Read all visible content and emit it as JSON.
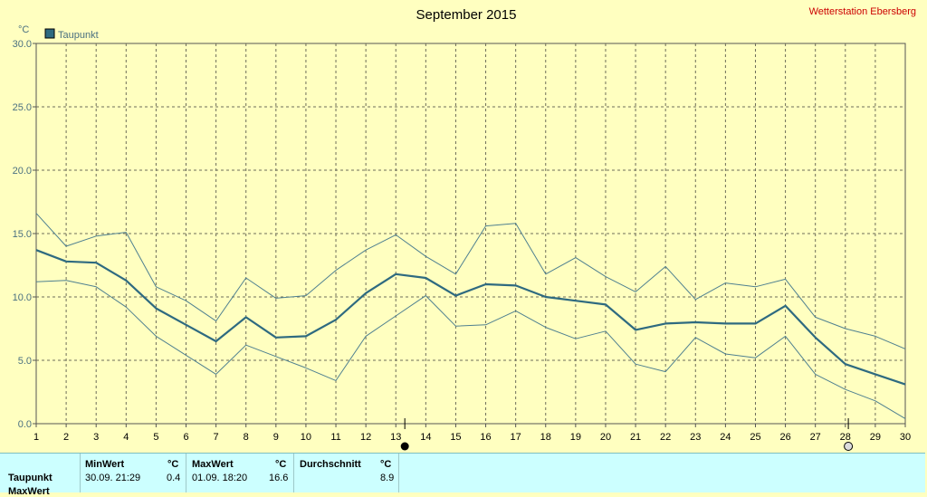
{
  "header": {
    "title": "September 2015",
    "station": "Wetterstation Ebersberg"
  },
  "colors": {
    "background": "#ffffc0",
    "series": "#2e6a80",
    "band": "#4f8090",
    "grid": "#8a8a6a",
    "axis_text": "#4a7080",
    "station": "#cc0000",
    "table_bg": "#ccffff"
  },
  "chart_data": {
    "type": "line",
    "title": "September 2015",
    "ylabel": "°C",
    "ylim": [
      0,
      30
    ],
    "yticks": [
      "0.0",
      "5.0",
      "10.0",
      "15.0",
      "20.0",
      "25.0",
      "30.0"
    ],
    "x": [
      1,
      2,
      3,
      4,
      5,
      6,
      7,
      8,
      9,
      10,
      11,
      12,
      13,
      14,
      15,
      16,
      17,
      18,
      19,
      20,
      21,
      22,
      23,
      24,
      25,
      26,
      27,
      28,
      29,
      30
    ],
    "grid": true,
    "legend_position": "top-left",
    "series": [
      {
        "name": "Taupunkt",
        "role": "mean",
        "values": [
          13.7,
          12.8,
          12.7,
          11.3,
          9.1,
          7.8,
          6.5,
          8.4,
          6.8,
          6.9,
          8.2,
          10.3,
          11.8,
          11.5,
          10.1,
          11.0,
          10.9,
          10.0,
          9.7,
          9.4,
          7.4,
          7.9,
          8.0,
          7.9,
          7.9,
          9.3,
          6.8,
          4.7,
          3.9,
          3.1
        ]
      },
      {
        "role": "max",
        "values": [
          16.6,
          14.0,
          14.8,
          15.1,
          10.8,
          9.7,
          8.1,
          11.5,
          9.9,
          10.1,
          12.1,
          13.7,
          14.9,
          13.2,
          11.8,
          15.6,
          15.8,
          11.8,
          13.1,
          11.6,
          10.4,
          12.4,
          9.8,
          11.1,
          10.8,
          11.4,
          8.4,
          7.5,
          6.9,
          5.9
        ]
      },
      {
        "role": "min",
        "values": [
          11.2,
          11.3,
          10.8,
          9.2,
          6.9,
          5.4,
          3.9,
          6.2,
          5.3,
          4.4,
          3.4,
          6.9,
          8.5,
          10.1,
          7.7,
          7.8,
          8.9,
          7.6,
          6.7,
          7.3,
          4.7,
          4.1,
          6.8,
          5.5,
          5.2,
          6.9,
          3.9,
          2.7,
          1.8,
          0.4
        ]
      }
    ],
    "markers": [
      {
        "x": 13.3,
        "symbol": "filled-circle"
      },
      {
        "x": 28.1,
        "symbol": "open-circle"
      }
    ]
  },
  "table": {
    "headers": {
      "min": "MinWert",
      "min_unit": "°C",
      "max": "MaxWert",
      "max_unit": "°C",
      "avg": "Durchschnitt",
      "avg_unit": "°C"
    },
    "rows": [
      {
        "label": "Taupunkt",
        "min_time": "30.09.  21:29",
        "min_value": "0.4",
        "max_time": "01.09.  18:20",
        "max_value": "16.6",
        "avg_value": "8.9"
      }
    ],
    "partial_row_label": "MaxWert"
  }
}
